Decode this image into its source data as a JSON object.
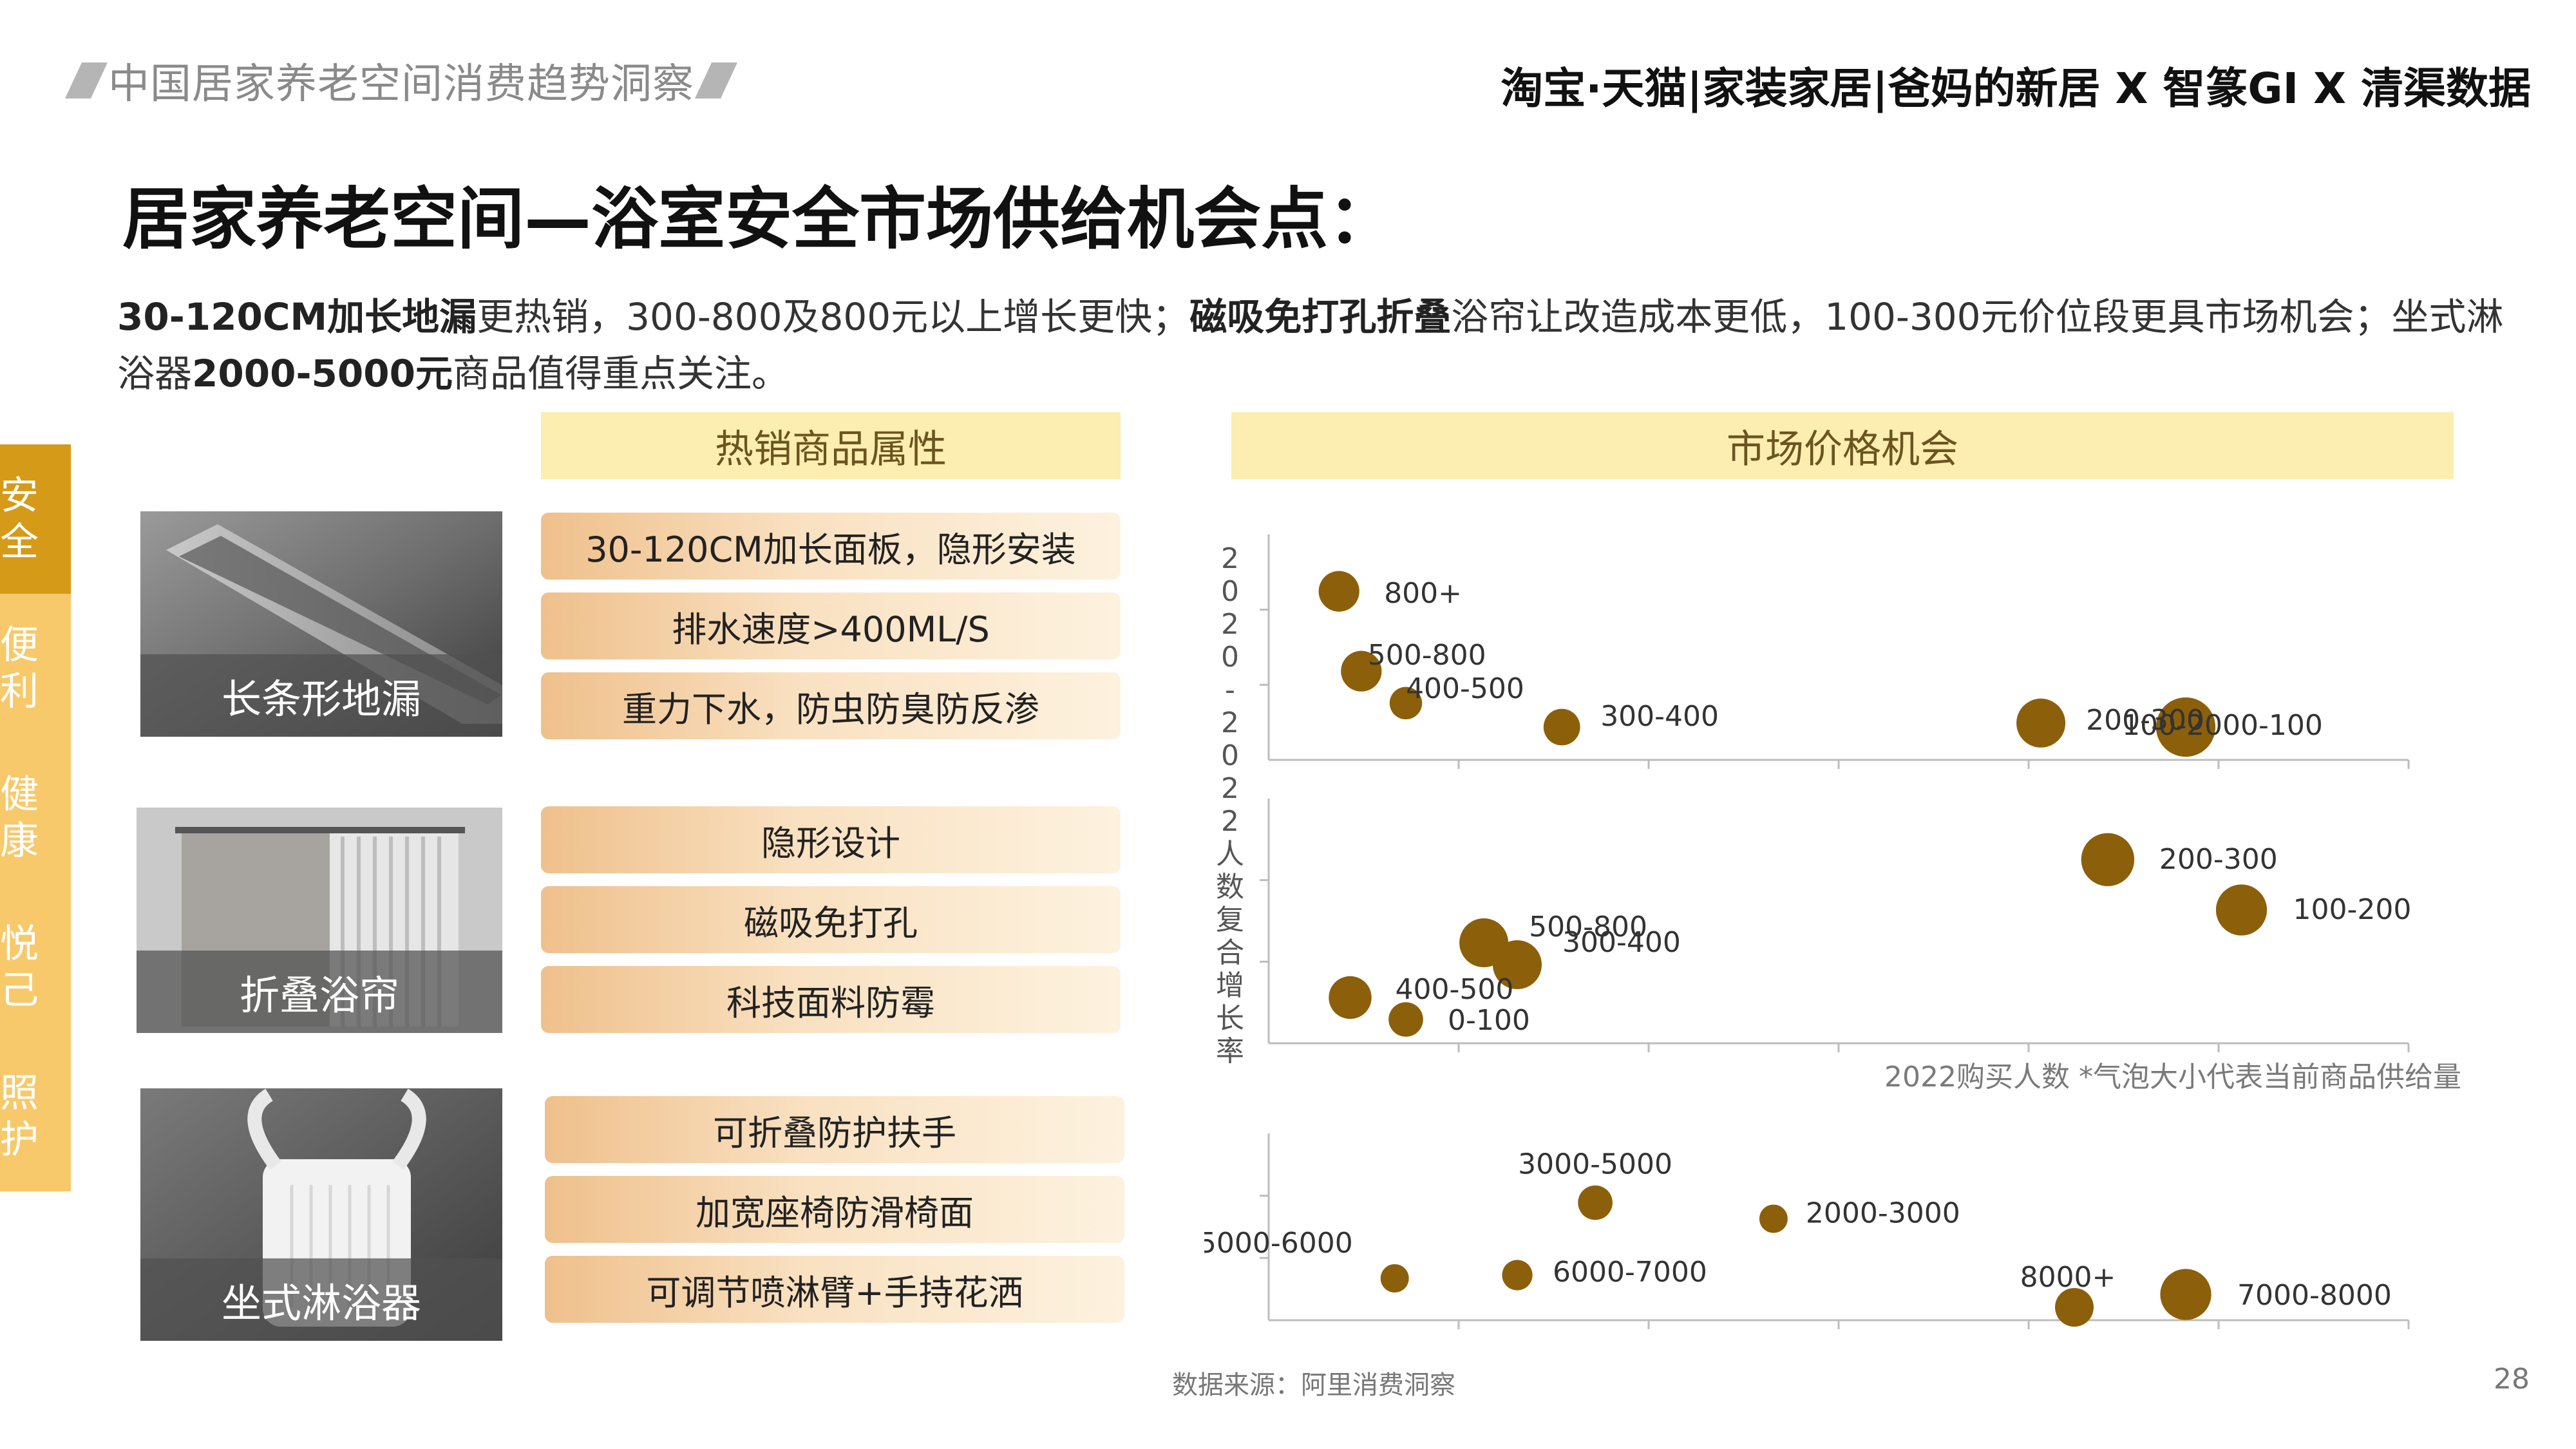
{
  "header": {
    "report_title": "中国居家养老空间消费趋势洞察",
    "brand": "淘宝·天猫|家装家居|爸妈的新居 X 智篆GI X 清渠数据"
  },
  "title": "居家养老空间—浴室安全市场供给机会点：",
  "summary": {
    "p1": "30-120CM加长地漏",
    "p2": "更热销，300-800及800元以上增长更快；",
    "p3": "磁吸免打孔折叠",
    "p4": "浴帘让改造成本更低，100-300元价位段更具市场机会；坐式淋浴器",
    "p5": "2000-5000元",
    "p6": "商品值得重点关注。"
  },
  "side_tabs": [
    {
      "label": "安全",
      "active": true
    },
    {
      "label": "便利",
      "active": false
    },
    {
      "label": "健康",
      "active": false
    },
    {
      "label": "悦己",
      "active": false
    },
    {
      "label": "照护",
      "active": false
    }
  ],
  "left_section_title": "热销商品属性",
  "right_section_title": "市场价格机会",
  "products": [
    {
      "name": "长条形地漏",
      "attributes": [
        "30-120CM加长面板，隐形安装",
        "排水速度>400ML/S",
        "重力下水，防虫防臭防反渗"
      ]
    },
    {
      "name": "折叠浴帘",
      "attributes": [
        "隐形设计",
        "磁吸免打孔",
        "科技面料防霉"
      ]
    },
    {
      "name": "坐式淋浴器",
      "attributes": [
        "可折叠防护扶手",
        "加宽座椅防滑椅面",
        "可调节喷淋臂+手持花洒"
      ]
    }
  ],
  "chart_data": {
    "type": "scatter",
    "subtype": "bubble",
    "ylabel": "2020-2022人数复合增长率",
    "note": "2022购买人数 *气泡大小代表当前商品供给量",
    "bubble_color": "#8c5f0a",
    "panels": [
      {
        "product": "长条形地漏",
        "points": [
          {
            "label": "800+",
            "x": 0.04,
            "y": 0.78,
            "size": 0.55
          },
          {
            "label": "500-800",
            "x": 0.06,
            "y": 0.38,
            "size": 0.55
          },
          {
            "label": "400-500",
            "x": 0.1,
            "y": 0.22,
            "size": 0.35
          },
          {
            "label": "300-400",
            "x": 0.24,
            "y": 0.1,
            "size": 0.45
          },
          {
            "label": "200-300",
            "x": 0.67,
            "y": 0.12,
            "size": 0.75
          },
          {
            "label": "100-200",
            "x": 0.8,
            "y": 0.1,
            "size": 1.0
          },
          {
            "label": "0-100",
            "x": 0.8,
            "y": 0.1,
            "size": 1.0
          }
        ]
      },
      {
        "product": "折叠浴帘",
        "points": [
          {
            "label": "200-300",
            "x": 0.73,
            "y": 0.78,
            "size": 0.85
          },
          {
            "label": "100-200",
            "x": 0.85,
            "y": 0.55,
            "size": 0.8
          },
          {
            "label": "500-800",
            "x": 0.17,
            "y": 0.4,
            "size": 0.75
          },
          {
            "label": "300-400",
            "x": 0.2,
            "y": 0.3,
            "size": 0.75
          },
          {
            "label": "400-500",
            "x": 0.05,
            "y": 0.15,
            "size": 0.6
          },
          {
            "label": "0-100",
            "x": 0.1,
            "y": 0.05,
            "size": 0.4
          }
        ]
      },
      {
        "product": "坐式淋浴器",
        "points": [
          {
            "label": "3000-5000",
            "x": 0.27,
            "y": 0.65,
            "size": 0.4
          },
          {
            "label": "2000-3000",
            "x": 0.43,
            "y": 0.55,
            "size": 0.25
          },
          {
            "label": "5000-6000",
            "x": 0.09,
            "y": 0.18,
            "size": 0.25
          },
          {
            "label": "6000-7000",
            "x": 0.2,
            "y": 0.2,
            "size": 0.3
          },
          {
            "label": "8000+",
            "x": 0.7,
            "y": 0.0,
            "size": 0.5
          },
          {
            "label": "7000-8000",
            "x": 0.8,
            "y": 0.08,
            "size": 0.8
          }
        ]
      }
    ]
  },
  "source": "数据来源：阿里消费洞察",
  "page_number": "28"
}
